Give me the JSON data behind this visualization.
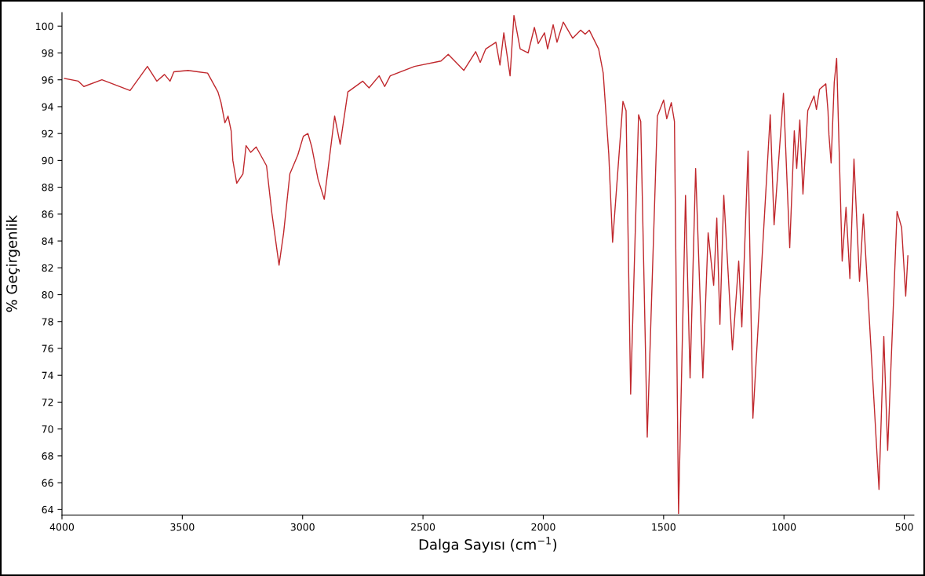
{
  "chart_data": {
    "type": "line",
    "xlabel": "Dalga Sayısı (cm$^{−1}$)",
    "ylabel": "% Geçirgenlik",
    "xlim": [
      4000,
      460
    ],
    "ylim": [
      63.6,
      101
    ],
    "xticks": [
      4000,
      3500,
      3000,
      2500,
      2000,
      1500,
      1000,
      500
    ],
    "yticks": [
      64,
      66,
      68,
      70,
      72,
      74,
      76,
      78,
      80,
      82,
      84,
      86,
      88,
      90,
      92,
      94,
      96,
      98,
      100
    ],
    "grid": false,
    "legend": false,
    "marker": "none",
    "line_style": "solid",
    "series": [
      {
        "color": "#c0282d",
        "x": [
          3990,
          3932,
          3909,
          3834,
          3717,
          3645,
          3606,
          3574,
          3551,
          3535,
          3476,
          3395,
          3352,
          3339,
          3323,
          3310,
          3297,
          3290,
          3274,
          3248,
          3235,
          3216,
          3193,
          3150,
          3128,
          3098,
          3079,
          3053,
          3020,
          2997,
          2978,
          2962,
          2936,
          2910,
          2867,
          2844,
          2812,
          2750,
          2724,
          2682,
          2659,
          2636,
          2535,
          2425,
          2395,
          2330,
          2281,
          2262,
          2239,
          2197,
          2180,
          2164,
          2138,
          2122,
          2096,
          2063,
          2037,
          2021,
          1995,
          1982,
          1959,
          1943,
          1917,
          1878,
          1845,
          1826,
          1809,
          1770,
          1751,
          1728,
          1712,
          1669,
          1656,
          1637,
          1604,
          1595,
          1568,
          1526,
          1500,
          1487,
          1468,
          1455,
          1438,
          1409,
          1390,
          1367,
          1337,
          1315,
          1292,
          1279,
          1266,
          1250,
          1214,
          1188,
          1175,
          1149,
          1129,
          1057,
          1041,
          1002,
          976,
          957,
          947,
          934,
          921,
          901,
          875,
          865,
          852,
          826,
          817,
          813,
          804,
          791,
          781,
          758,
          742,
          726,
          709,
          686,
          670,
          605,
          585,
          569,
          530,
          511,
          494,
          485
        ],
        "values": [
          96.1,
          95.9,
          95.5,
          96.0,
          95.2,
          97.0,
          95.9,
          96.4,
          95.9,
          96.6,
          96.7,
          96.5,
          95.1,
          94.3,
          92.8,
          93.3,
          92.2,
          90.0,
          88.3,
          89.0,
          91.1,
          90.6,
          91.0,
          89.6,
          86.1,
          82.2,
          84.6,
          89.0,
          90.4,
          91.8,
          92.0,
          91.0,
          88.6,
          87.1,
          93.3,
          91.2,
          95.1,
          95.9,
          95.4,
          96.3,
          95.5,
          96.3,
          97.0,
          97.4,
          97.9,
          96.7,
          98.1,
          97.3,
          98.3,
          98.8,
          97.1,
          99.5,
          96.3,
          100.8,
          98.3,
          98.0,
          99.9,
          98.7,
          99.5,
          98.3,
          100.1,
          98.8,
          100.3,
          99.1,
          99.7,
          99.4,
          99.7,
          98.3,
          96.5,
          90.5,
          83.9,
          94.4,
          93.7,
          72.6,
          93.4,
          92.9,
          69.4,
          93.3,
          94.5,
          93.1,
          94.3,
          92.9,
          63.7,
          87.4,
          73.8,
          89.4,
          73.8,
          84.6,
          80.7,
          85.7,
          77.8,
          87.4,
          75.9,
          82.5,
          77.6,
          90.7,
          70.8,
          93.4,
          85.2,
          95.0,
          83.5,
          92.2,
          89.4,
          93.0,
          87.5,
          93.7,
          94.8,
          93.8,
          95.3,
          95.7,
          93.7,
          91.9,
          89.8,
          95.8,
          97.6,
          82.5,
          86.5,
          81.2,
          90.1,
          81.0,
          86.0,
          65.5,
          76.9,
          68.4,
          86.2,
          85.0,
          79.9,
          82.9
        ]
      }
    ]
  }
}
